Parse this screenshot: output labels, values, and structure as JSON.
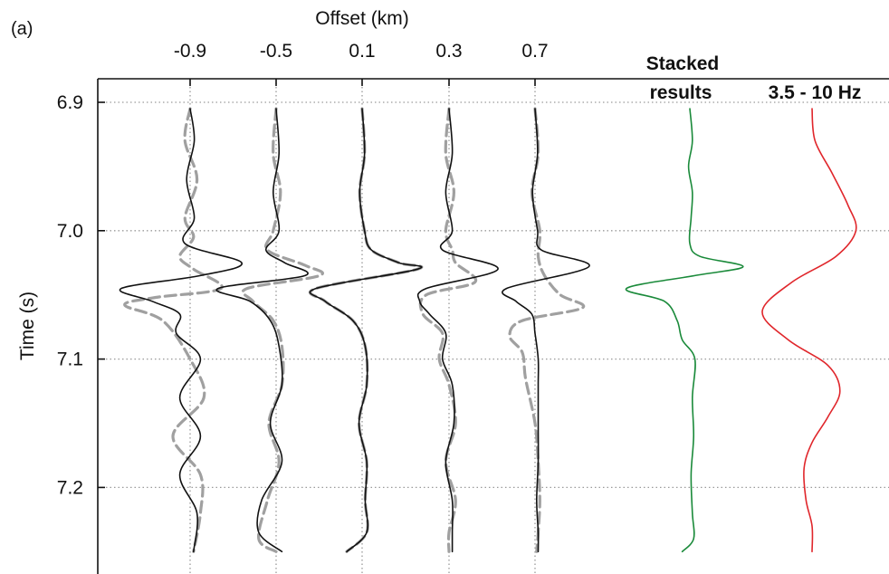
{
  "chart_data": {
    "type": "line",
    "panel_label": "(a)",
    "title": "",
    "xlabel": "Offset (km)",
    "ylabel": "Time (s)",
    "x_ticks": [
      "-0.9",
      "-0.5",
      "0.1",
      "0.3",
      "0.7"
    ],
    "y_ticks": [
      "6.9",
      "7.0",
      "7.1",
      "7.2"
    ],
    "y_tick_values": [
      6.9,
      7.0,
      7.1,
      7.2
    ],
    "ylim": [
      6.882,
      7.27
    ],
    "y_inverted": true,
    "grid": true,
    "extra_columns": [
      {
        "label_lines": [
          "Stacked",
          "results"
        ],
        "color": "#1a8a3a"
      },
      {
        "label_lines": [
          "3.5 - 10 Hz"
        ],
        "color": "#e0262b"
      }
    ],
    "trace_style": {
      "observed": {
        "color": "#111111",
        "dash": "solid"
      },
      "modeled": {
        "color": "#a0a0a0",
        "dash": "dashed"
      }
    },
    "series": [
      {
        "offset": "-0.9",
        "observed": {
          "time": [
            6.905,
            6.93,
            6.96,
            6.99,
            7.01,
            7.025,
            7.035,
            7.045,
            7.055,
            7.065,
            7.08,
            7.1,
            7.13,
            7.16,
            7.19,
            7.22,
            7.25
          ],
          "amp": [
            0,
            0.12,
            -0.1,
            0.12,
            -0.15,
            1.5,
            0.3,
            -2.0,
            -1.1,
            -0.3,
            -0.4,
            0.3,
            -0.3,
            0.3,
            -0.3,
            0.2,
            0.1
          ]
        },
        "modeled": {
          "time": [
            6.905,
            6.93,
            6.96,
            6.99,
            7.005,
            7.02,
            7.03,
            7.045,
            7.052,
            7.058,
            7.07,
            7.1,
            7.13,
            7.16,
            7.19,
            7.22,
            7.25
          ],
          "amp": [
            0,
            -0.15,
            0.2,
            -0.15,
            0.1,
            -0.3,
            0.1,
            0.9,
            -1.0,
            -1.9,
            -0.8,
            0.0,
            0.4,
            -0.5,
            0.3,
            0.3,
            0.1
          ]
        }
      },
      {
        "offset": "-0.5",
        "observed": {
          "time": [
            6.905,
            6.94,
            6.97,
            7.0,
            7.015,
            7.025,
            7.035,
            7.045,
            7.055,
            7.07,
            7.09,
            7.12,
            7.15,
            7.18,
            7.21,
            7.235,
            7.25
          ],
          "amp": [
            0,
            0.1,
            -0.1,
            0.1,
            -0.35,
            0.3,
            1.0,
            -2.0,
            -0.9,
            -0.2,
            0.1,
            0.2,
            -0.2,
            0.2,
            -0.5,
            -0.6,
            0.2
          ]
        },
        "modeled": {
          "time": [
            6.905,
            6.94,
            6.97,
            7.0,
            7.015,
            7.027,
            7.035,
            7.045,
            7.055,
            7.07,
            7.09,
            7.12,
            7.15,
            7.18,
            7.21,
            7.24,
            7.25
          ],
          "amp": [
            0,
            -0.1,
            0.15,
            -0.1,
            -0.3,
            1.0,
            1.5,
            -1.0,
            -0.8,
            -0.1,
            0.2,
            0.2,
            -0.25,
            0.1,
            -0.3,
            -0.6,
            0.0
          ]
        }
      },
      {
        "offset": "0.1",
        "observed": {
          "time": [
            6.905,
            6.94,
            6.97,
            7.0,
            7.015,
            7.025,
            7.03,
            7.045,
            7.055,
            7.07,
            7.09,
            7.12,
            7.15,
            7.18,
            7.21,
            7.235,
            7.25
          ],
          "amp": [
            0,
            0.08,
            -0.08,
            0.08,
            0.3,
            1.2,
            1.8,
            -1.5,
            -1.2,
            -0.3,
            0.1,
            0.15,
            -0.1,
            0.15,
            0.1,
            0.15,
            -0.5
          ]
        },
        "modeled": {
          "time": [
            6.905,
            6.94,
            6.97,
            7.0,
            7.015,
            7.025,
            7.03,
            7.045,
            7.055,
            7.07,
            7.09,
            7.12,
            7.15,
            7.18,
            7.21,
            7.235,
            7.25
          ],
          "amp": [
            0,
            0.08,
            -0.08,
            0.08,
            0.3,
            1.2,
            1.8,
            -1.5,
            -1.2,
            -0.3,
            0.1,
            0.15,
            -0.1,
            0.15,
            0.1,
            0.15,
            -0.5
          ]
        }
      },
      {
        "offset": "0.3",
        "observed": {
          "time": [
            6.905,
            6.94,
            6.97,
            7.0,
            7.015,
            7.03,
            7.045,
            7.055,
            7.065,
            7.08,
            7.1,
            7.12,
            7.15,
            7.18,
            7.21,
            7.235,
            7.25
          ],
          "amp": [
            0,
            0.1,
            -0.1,
            0.1,
            -0.2,
            1.5,
            -0.7,
            -0.9,
            -0.6,
            -0.1,
            -0.2,
            0.1,
            0.15,
            -0.1,
            0.1,
            0.1,
            0.1
          ]
        },
        "modeled": {
          "time": [
            6.905,
            6.94,
            6.97,
            7.0,
            7.015,
            7.025,
            7.04,
            7.05,
            7.065,
            7.08,
            7.1,
            7.12,
            7.15,
            7.18,
            7.21,
            7.235,
            7.25
          ],
          "amp": [
            0,
            -0.1,
            0.15,
            -0.1,
            0.1,
            0.2,
            0.8,
            -0.7,
            -0.8,
            -0.2,
            -0.3,
            0.0,
            0.2,
            -0.1,
            0.2,
            0.0,
            0.0
          ]
        }
      },
      {
        "offset": "0.7",
        "observed": {
          "time": [
            6.905,
            6.94,
            6.97,
            7.0,
            7.015,
            7.028,
            7.045,
            7.055,
            7.065,
            7.08,
            7.1,
            7.12,
            7.15,
            7.18,
            7.21,
            7.235,
            7.25
          ],
          "amp": [
            0,
            0.08,
            -0.08,
            0.08,
            0.2,
            1.7,
            -0.9,
            -0.6,
            -0.1,
            0.0,
            0.1,
            0.1,
            0.1,
            0.1,
            0.05,
            0.1,
            0.1
          ]
        },
        "modeled": {
          "time": [
            6.905,
            6.94,
            6.97,
            7.0,
            7.02,
            7.035,
            7.05,
            7.06,
            7.07,
            7.082,
            7.095,
            7.115,
            7.15,
            7.18,
            7.21,
            7.235,
            7.25
          ],
          "amp": [
            0,
            0.1,
            -0.1,
            0.15,
            0.1,
            0.3,
            0.8,
            1.5,
            -0.4,
            -0.8,
            -0.4,
            -0.3,
            0.0,
            0.1,
            0.15,
            0.1,
            0.05
          ]
        }
      },
      {
        "offset": "Stacked results",
        "time": [
          6.905,
          6.93,
          6.95,
          6.97,
          6.99,
          7.01,
          7.02,
          7.028,
          7.035,
          7.045,
          7.055,
          7.07,
          7.085,
          7.1,
          7.13,
          7.16,
          7.19,
          7.22,
          7.24,
          7.25
        ],
        "amp": [
          0,
          0.1,
          -0.05,
          0.1,
          0.05,
          0.0,
          0.4,
          2.1,
          0.2,
          -2.5,
          -1.0,
          -0.5,
          -0.3,
          0.2,
          0.1,
          0.15,
          0.05,
          0.1,
          0.15,
          -0.3
        ]
      },
      {
        "offset": "3.5 - 10 Hz",
        "time": [
          6.905,
          6.93,
          6.955,
          6.98,
          7.0,
          7.02,
          7.04,
          7.063,
          7.085,
          7.105,
          7.125,
          7.145,
          7.165,
          7.185,
          7.21,
          7.23,
          7.25
        ],
        "amp": [
          0,
          0.15,
          1.0,
          1.8,
          2.2,
          1.2,
          -1.0,
          -2.5,
          -1.2,
          0.8,
          1.4,
          0.8,
          0.0,
          -0.4,
          -0.3,
          0.0,
          0.0
        ]
      }
    ]
  }
}
